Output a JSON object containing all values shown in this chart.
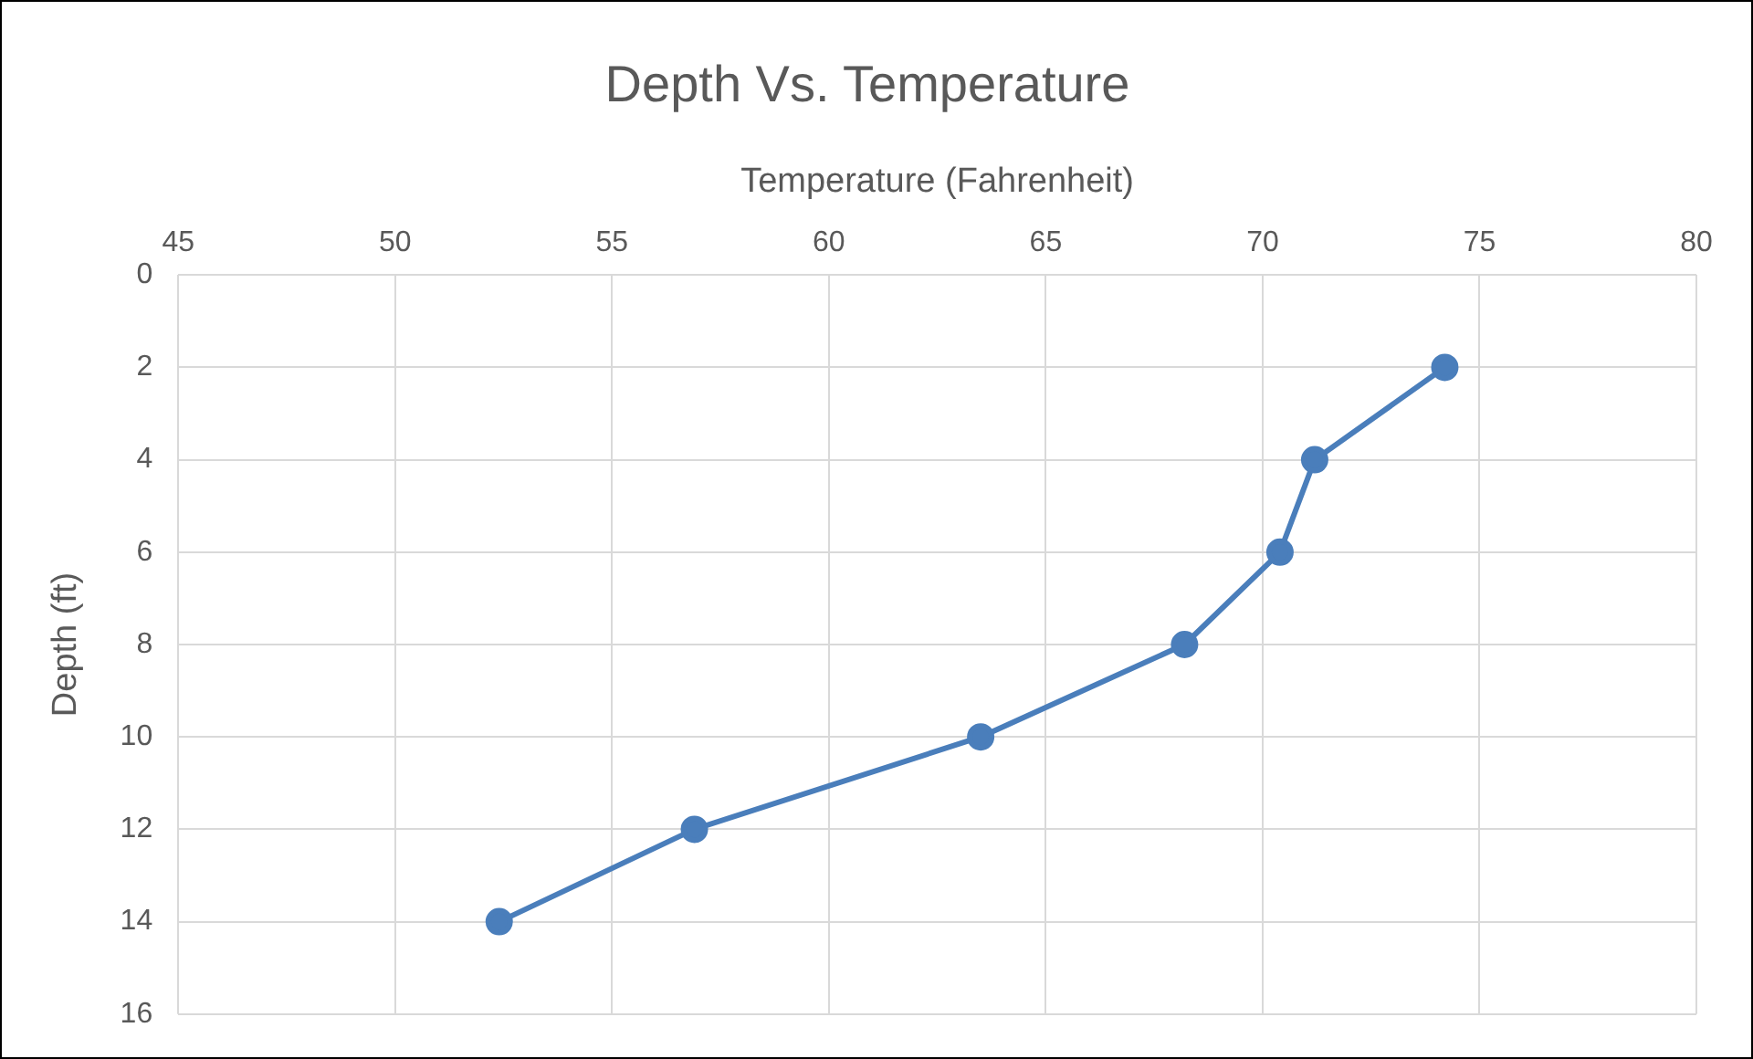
{
  "chart_data": {
    "type": "line",
    "title": "Depth Vs. Temperature",
    "xlabel": "Temperature (Fahrenheit)",
    "ylabel": "Depth (ft)",
    "series": [
      {
        "color": "#4a7ebb",
        "x": [
          74.2,
          71.2,
          70.4,
          68.2,
          63.5,
          56.9,
          52.4
        ],
        "values": [
          2,
          4,
          6,
          8,
          10,
          12,
          14
        ]
      }
    ],
    "xlim": [
      45,
      80
    ],
    "xticks": [
      45,
      50,
      55,
      60,
      65,
      70,
      75,
      80
    ],
    "ylim": [
      16,
      0
    ],
    "yticks": [
      0,
      2,
      4,
      6,
      8,
      10,
      12,
      14,
      16
    ],
    "grid": true,
    "legend": false,
    "marker": "circle",
    "line_style": "solid"
  }
}
